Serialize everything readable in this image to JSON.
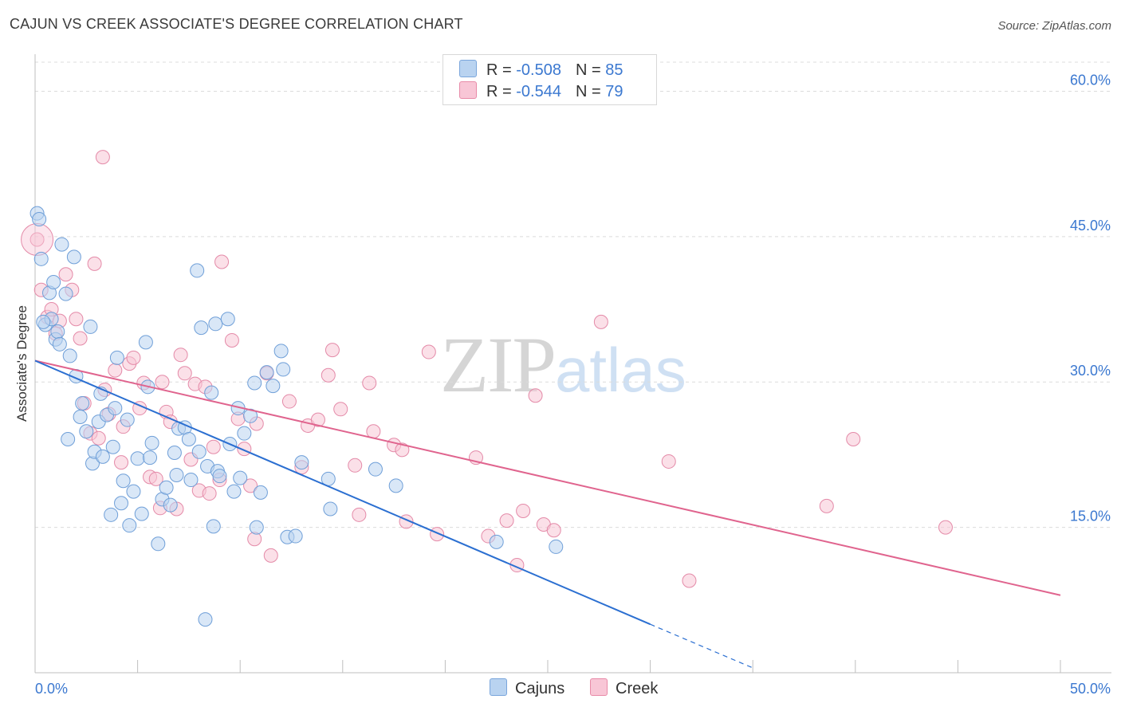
{
  "header": {
    "title": "CAJUN VS CREEK ASSOCIATE'S DEGREE CORRELATION CHART",
    "source": "Source: ZipAtlas.com"
  },
  "watermark": {
    "zip": "ZIP",
    "atlas": "atlas"
  },
  "legend": {
    "rows": [
      {
        "r_label": "R = ",
        "r_value": "-0.508",
        "n_label": "N = ",
        "n_value": "85",
        "color": "#b9d3f0",
        "border": "#7aa6dc"
      },
      {
        "r_label": "R = ",
        "r_value": "-0.544",
        "n_label": "N = ",
        "n_value": "79",
        "color": "#f8c6d6",
        "border": "#e88aa8"
      }
    ],
    "bottom": [
      {
        "label": "Cajuns"
      },
      {
        "label": "Creek"
      }
    ]
  },
  "colors": {
    "cajun_fill": "#b9d3f0",
    "cajun_stroke": "#6f9fd8",
    "cajun_line": "#2b6fd1",
    "creek_fill": "#f8c6d6",
    "creek_stroke": "#e48aa8",
    "creek_line": "#e0648e",
    "tick_label": "#3b78d0",
    "grid": "#dcdcdc"
  },
  "chart_data": {
    "type": "scatter",
    "title": "CAJUN VS CREEK ASSOCIATE'S DEGREE CORRELATION CHART",
    "xlabel": "",
    "ylabel": "Associate's Degree",
    "xlim": [
      0,
      50
    ],
    "ylim": [
      0,
      63
    ],
    "x_tick_labels": [
      "0.0%",
      "50.0%"
    ],
    "y_ticks": [
      15,
      30,
      45,
      60
    ],
    "y_tick_labels": [
      "15.0%",
      "30.0%",
      "45.0%",
      "60.0%"
    ],
    "grid": "horizontal dashed",
    "legend_position": "top-center",
    "series": [
      {
        "name": "Cajuns",
        "r": -0.508,
        "n": 85,
        "trend": {
          "x": [
            0,
            30
          ],
          "y": [
            32.2,
            5.0
          ],
          "dashed_extension_to": [
            35,
            0.5
          ]
        },
        "points": [
          [
            0.1,
            47.4
          ],
          [
            0.2,
            46.8
          ],
          [
            0.3,
            42.7
          ],
          [
            0.5,
            35.9
          ],
          [
            0.7,
            39.2
          ],
          [
            0.8,
            36.5
          ],
          [
            0.9,
            40.3
          ],
          [
            1.0,
            34.4
          ],
          [
            1.1,
            35.2
          ],
          [
            1.3,
            44.2
          ],
          [
            1.5,
            39.1
          ],
          [
            1.6,
            24.1
          ],
          [
            1.7,
            32.7
          ],
          [
            1.9,
            42.9
          ],
          [
            2.0,
            30.6
          ],
          [
            2.3,
            27.8
          ],
          [
            2.5,
            24.9
          ],
          [
            2.7,
            35.7
          ],
          [
            2.8,
            21.6
          ],
          [
            2.9,
            22.8
          ],
          [
            3.1,
            25.9
          ],
          [
            3.2,
            28.8
          ],
          [
            3.3,
            22.3
          ],
          [
            3.5,
            26.6
          ],
          [
            3.7,
            16.3
          ],
          [
            3.8,
            23.3
          ],
          [
            3.9,
            27.3
          ],
          [
            4.0,
            32.5
          ],
          [
            4.2,
            17.5
          ],
          [
            4.3,
            19.8
          ],
          [
            4.5,
            26.1
          ],
          [
            4.6,
            15.2
          ],
          [
            4.8,
            18.7
          ],
          [
            5.0,
            22.1
          ],
          [
            5.2,
            16.4
          ],
          [
            5.4,
            34.1
          ],
          [
            5.5,
            29.5
          ],
          [
            5.6,
            22.2
          ],
          [
            5.7,
            23.7
          ],
          [
            6.0,
            13.3
          ],
          [
            6.2,
            17.9
          ],
          [
            6.4,
            19.1
          ],
          [
            6.6,
            17.3
          ],
          [
            6.8,
            22.7
          ],
          [
            7.0,
            25.2
          ],
          [
            7.3,
            25.3
          ],
          [
            7.5,
            24.1
          ],
          [
            7.6,
            19.9
          ],
          [
            7.9,
            41.5
          ],
          [
            8.0,
            22.8
          ],
          [
            8.1,
            35.6
          ],
          [
            8.3,
            5.5
          ],
          [
            8.4,
            21.3
          ],
          [
            8.6,
            28.9
          ],
          [
            8.7,
            15.1
          ],
          [
            8.8,
            36.0
          ],
          [
            8.9,
            20.8
          ],
          [
            9.0,
            20.3
          ],
          [
            9.4,
            36.5
          ],
          [
            9.5,
            23.6
          ],
          [
            9.7,
            18.7
          ],
          [
            9.9,
            27.3
          ],
          [
            10.0,
            20.1
          ],
          [
            10.2,
            24.7
          ],
          [
            10.5,
            26.5
          ],
          [
            10.7,
            29.9
          ],
          [
            10.8,
            15.0
          ],
          [
            11.0,
            18.6
          ],
          [
            11.3,
            31.0
          ],
          [
            11.6,
            29.6
          ],
          [
            12.0,
            33.2
          ],
          [
            12.1,
            31.3
          ],
          [
            12.3,
            14.0
          ],
          [
            12.7,
            14.1
          ],
          [
            13.0,
            21.7
          ],
          [
            14.3,
            20.0
          ],
          [
            14.4,
            16.9
          ],
          [
            16.6,
            21.0
          ],
          [
            17.6,
            19.3
          ],
          [
            22.5,
            13.5
          ],
          [
            25.4,
            13.0
          ],
          [
            0.4,
            36.2
          ],
          [
            1.2,
            33.9
          ],
          [
            2.2,
            26.4
          ],
          [
            6.9,
            20.4
          ]
        ]
      },
      {
        "name": "Creek",
        "r": -0.544,
        "n": 79,
        "trend": {
          "x": [
            0,
            50
          ],
          "y": [
            32.2,
            8.0
          ]
        },
        "points": [
          [
            0.1,
            44.7
          ],
          [
            0.3,
            39.5
          ],
          [
            0.6,
            36.7
          ],
          [
            0.8,
            37.5
          ],
          [
            1.0,
            35.0
          ],
          [
            1.2,
            36.3
          ],
          [
            1.5,
            41.1
          ],
          [
            1.8,
            39.5
          ],
          [
            2.0,
            36.5
          ],
          [
            2.2,
            34.5
          ],
          [
            2.4,
            27.8
          ],
          [
            2.7,
            24.7
          ],
          [
            2.9,
            42.2
          ],
          [
            3.1,
            24.2
          ],
          [
            3.3,
            53.2
          ],
          [
            3.4,
            29.2
          ],
          [
            3.6,
            26.7
          ],
          [
            3.9,
            31.2
          ],
          [
            4.2,
            21.7
          ],
          [
            4.3,
            25.4
          ],
          [
            4.6,
            31.9
          ],
          [
            4.8,
            32.5
          ],
          [
            5.1,
            27.3
          ],
          [
            5.3,
            29.9
          ],
          [
            5.6,
            20.2
          ],
          [
            5.9,
            20.0
          ],
          [
            6.1,
            17.0
          ],
          [
            6.2,
            30.0
          ],
          [
            6.4,
            26.9
          ],
          [
            6.6,
            25.9
          ],
          [
            6.9,
            16.9
          ],
          [
            7.1,
            32.8
          ],
          [
            7.3,
            30.9
          ],
          [
            7.6,
            22.0
          ],
          [
            7.8,
            29.8
          ],
          [
            8.0,
            18.8
          ],
          [
            8.3,
            29.5
          ],
          [
            8.5,
            18.5
          ],
          [
            8.7,
            23.3
          ],
          [
            9.0,
            19.9
          ],
          [
            9.1,
            42.4
          ],
          [
            9.6,
            34.3
          ],
          [
            9.9,
            26.2
          ],
          [
            10.2,
            23.1
          ],
          [
            10.5,
            19.3
          ],
          [
            10.8,
            25.7
          ],
          [
            10.7,
            13.8
          ],
          [
            11.3,
            30.9
          ],
          [
            11.5,
            12.1
          ],
          [
            12.4,
            28.0
          ],
          [
            13.0,
            21.2
          ],
          [
            13.3,
            25.5
          ],
          [
            13.8,
            26.1
          ],
          [
            14.3,
            30.7
          ],
          [
            14.5,
            33.3
          ],
          [
            14.9,
            27.2
          ],
          [
            15.6,
            21.4
          ],
          [
            15.8,
            16.3
          ],
          [
            16.3,
            29.9
          ],
          [
            16.5,
            24.9
          ],
          [
            17.5,
            23.5
          ],
          [
            17.9,
            23.0
          ],
          [
            18.1,
            15.6
          ],
          [
            19.2,
            33.1
          ],
          [
            19.6,
            14.3
          ],
          [
            21.5,
            22.2
          ],
          [
            22.1,
            14.1
          ],
          [
            23.0,
            15.7
          ],
          [
            23.5,
            11.1
          ],
          [
            23.8,
            16.7
          ],
          [
            24.4,
            28.6
          ],
          [
            24.8,
            15.3
          ],
          [
            25.3,
            14.7
          ],
          [
            27.6,
            36.2
          ],
          [
            30.9,
            21.8
          ],
          [
            31.9,
            9.5
          ],
          [
            38.6,
            17.2
          ],
          [
            39.9,
            24.1
          ],
          [
            44.4,
            15.0
          ]
        ]
      }
    ]
  }
}
